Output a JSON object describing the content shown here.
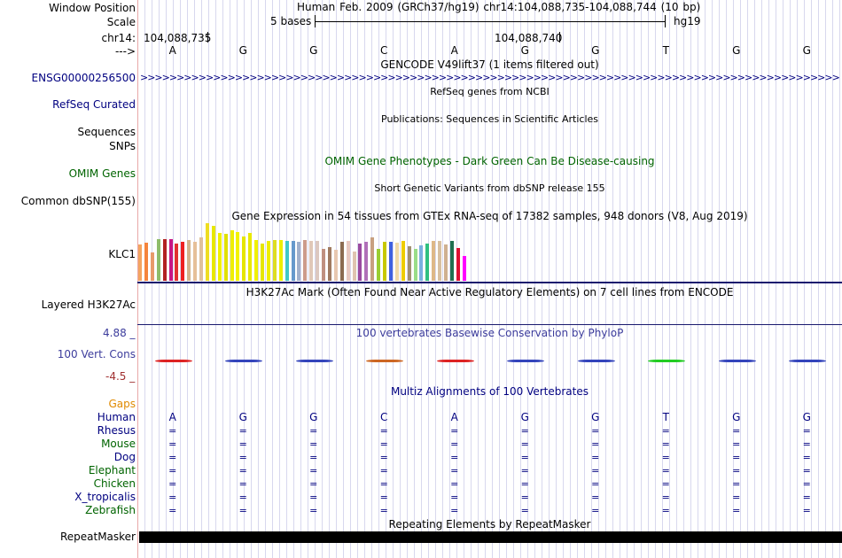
{
  "header": {
    "window_position_label": "Window Position",
    "scale_label": "Scale",
    "chrom_label": "chr14:",
    "strand_label": "--->",
    "title": "Human Feb. 2009 (GRCh37/hg19)   chr14:104,088,735-104,088,744 (10 bp)",
    "scale_text": "5 bases",
    "assembly": "hg19",
    "coord_left": "104,088,735",
    "coord_mid": "104,088,740"
  },
  "sequence": [
    "A",
    "G",
    "G",
    "C",
    "A",
    "G",
    "G",
    "T",
    "G",
    "G"
  ],
  "tracks": {
    "gencode": {
      "title": "GENCODE V49lift37 (1 items filtered out)",
      "label": "ENSG00000256500",
      "arrows": ">>>>>>>>>>>>>>>>>>>>>>>>>>>>>>>>>>>>>>>>>>>>>>>>>>>>>>>>>>>>>>>>>>>>>>>>>>>>>>>>>>>>>>>>>>>>>>>>>>>>>>>>>>>>>>>>>>>>>"
    },
    "refseq": {
      "title": "RefSeq genes from NCBI",
      "label": "RefSeq Curated"
    },
    "publications": {
      "title": "Publications: Sequences in Scientific Articles",
      "label": "Sequences"
    },
    "snps_label": "SNPs",
    "omim": {
      "title": "OMIM Gene Phenotypes - Dark Green Can Be Disease-causing",
      "label": "OMIM Genes"
    },
    "dbsnp": {
      "title": "Short Genetic Variants from dbSNP release 155",
      "label": "Common dbSNP(155)"
    },
    "gtex": {
      "title": "Gene Expression in 54 tissues from GTEx RNA-seq of 17382 samples, 948 donors (V8, Aug 2019)",
      "label": "KLC1",
      "values": [
        41,
        43,
        32,
        47,
        47,
        47,
        42,
        44,
        46,
        44,
        49,
        65,
        62,
        54,
        53,
        57,
        55,
        50,
        54,
        46,
        42,
        45,
        46,
        46,
        45,
        45,
        44,
        46,
        45,
        45,
        36,
        38,
        35,
        44,
        45,
        33,
        42,
        44,
        49,
        36,
        44,
        44,
        43,
        45,
        39,
        36,
        40,
        42,
        45,
        45,
        41,
        45,
        37,
        28
      ],
      "colors": [
        "#f4a460",
        "#f5843c",
        "#e89a6a",
        "#8fbc6a",
        "#b22222",
        "#c71585",
        "#e03030",
        "#ee2020",
        "#d2b48c",
        "#e6c099",
        "#dfc09c",
        "#eedd22",
        "#e8e800",
        "#f0f000",
        "#e0e000",
        "#eeee00",
        "#f2f200",
        "#e6e600",
        "#e8e800",
        "#f0f000",
        "#e6e600",
        "#eeee00",
        "#dddd22",
        "#eeee00",
        "#40c8c8",
        "#6699cc",
        "#a0b0cc",
        "#cd9b8b",
        "#e0c8b8",
        "#dcc8c0",
        "#c09080",
        "#a07a60",
        "#e8c8b0",
        "#8b6b50",
        "#e8c8c0",
        "#e0c4b0",
        "#9a4aa0",
        "#b070b8",
        "#c8a080",
        "#9acd32",
        "#c8c800",
        "#4060e0",
        "#f0d8a8",
        "#eecc00",
        "#a09070",
        "#99dd88",
        "#7ab0e0",
        "#30c080",
        "#deb887",
        "#d8c0a0",
        "#cfb090",
        "#207050",
        "#dd1133",
        "#ff00ff"
      ]
    },
    "h3k27ac": {
      "title": "H3K27Ac Mark (Often Found Near Active Regulatory Elements) on 7 cell lines from ENCODE",
      "label": "Layered H3K27Ac"
    },
    "conservation": {
      "title": "100 vertebrates Basewise Conservation by PhyloP",
      "label": "100 Vert. Cons",
      "max": "4.88 _",
      "min": "-4.5 _",
      "colors": [
        "#dd2222",
        "#3344bb",
        "#3344bb",
        "#cc6622",
        "#dd2222",
        "#3344bb",
        "#3344bb",
        "#22cc22",
        "#3344bb",
        "#3344bb"
      ]
    },
    "multiz": {
      "title": "Multiz Alignments of 100 Vertebrates",
      "gaps_label": "Gaps",
      "species": [
        {
          "name": "Human",
          "color": "#000080"
        },
        {
          "name": "Rhesus",
          "color": "#000080"
        },
        {
          "name": "Mouse",
          "color": "#006400"
        },
        {
          "name": "Dog",
          "color": "#000080"
        },
        {
          "name": "Elephant",
          "color": "#006400"
        },
        {
          "name": "Chicken",
          "color": "#006400"
        },
        {
          "name": "X_tropicalis",
          "color": "#000080"
        },
        {
          "name": "Zebrafish",
          "color": "#006400"
        }
      ],
      "match_symbol": "="
    },
    "repeatmasker": {
      "title": "Repeating Elements by RepeatMasker",
      "label": "RepeatMasker"
    }
  }
}
